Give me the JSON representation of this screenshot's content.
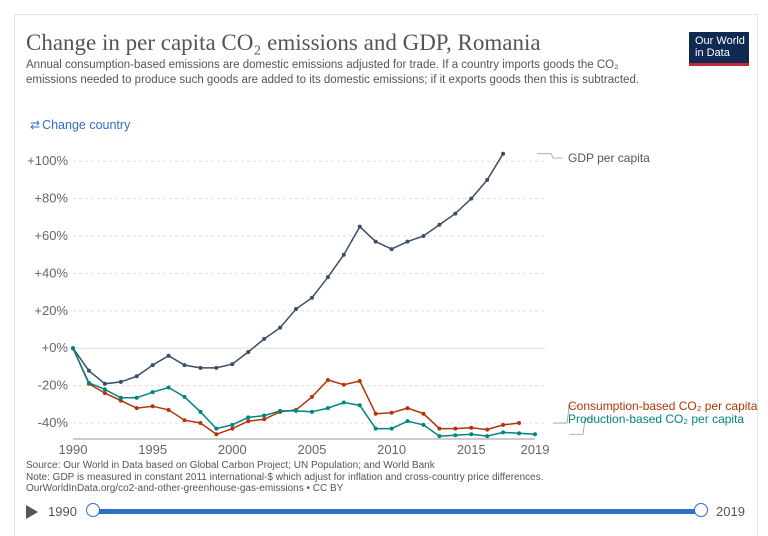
{
  "header": {
    "title": "Change in per capita CO₂ emissions and GDP, Romania",
    "subtitle": "Annual consumption-based emissions are domestic emissions adjusted for trade. If a country imports goods the CO₂ emissions needed to produce such goods are added to its domestic emissions; if it exports goods then this is subtracted.",
    "logo_line1": "Our World",
    "logo_line2": "in Data",
    "change_country": "Change country"
  },
  "colors": {
    "gdp": "#3c4e66",
    "consumption": "#b13507",
    "production": "#00847e",
    "grid": "#dddddd",
    "accent": "#2d6fc8"
  },
  "chart_data": {
    "type": "line",
    "x": [
      1990,
      1991,
      1992,
      1993,
      1994,
      1995,
      1996,
      1997,
      1998,
      1999,
      2000,
      2001,
      2002,
      2003,
      2004,
      2005,
      2006,
      2007,
      2008,
      2009,
      2010,
      2011,
      2012,
      2013,
      2014,
      2015,
      2016,
      2017,
      2018,
      2019
    ],
    "series": [
      {
        "name": "GDP per capita",
        "color_key": "gdp",
        "values": [
          0,
          -12,
          -19,
          -18,
          -15,
          -9,
          -4,
          -9,
          -10.5,
          -10.5,
          -8.5,
          -2,
          5,
          11,
          21,
          27,
          38,
          50,
          65,
          57,
          53,
          57,
          60,
          66,
          72,
          80,
          90,
          104,
          null,
          null
        ]
      },
      {
        "name": "Consumption-based CO₂ per capita",
        "color_key": "consumption",
        "values": [
          0,
          -19,
          -24,
          -28,
          -32,
          -31,
          -33,
          -38.5,
          -40,
          -46,
          -43,
          -39,
          -38,
          -34,
          -33,
          -26,
          -17,
          -19.5,
          -17.5,
          -35,
          -34.5,
          -32,
          -35,
          -43,
          -43,
          -42.5,
          -43.5,
          -41,
          -40,
          null
        ]
      },
      {
        "name": "Production-based CO₂ per capita",
        "color_key": "production",
        "values": [
          0,
          -18.5,
          -22,
          -26.5,
          -26.5,
          -23.5,
          -21,
          -26,
          -34,
          -43,
          -41,
          -37,
          -36,
          -33.5,
          -33.5,
          -34,
          -32,
          -29,
          -30.5,
          -43,
          -43,
          -39,
          -41,
          -47,
          -46.5,
          -46,
          -47,
          -45,
          -45.5,
          -46
        ]
      }
    ],
    "y_ticks": [
      -40,
      -20,
      0,
      20,
      40,
      60,
      80,
      100
    ],
    "y_tick_labels": [
      "-40%",
      "-20%",
      "+0%",
      "+20%",
      "+40%",
      "+60%",
      "+80%",
      "+100%"
    ],
    "x_ticks": [
      1990,
      1995,
      2000,
      2005,
      2010,
      2015,
      2019
    ],
    "x_tick_labels": [
      "1990",
      "1995",
      "2000",
      "2005",
      "2010",
      "2015",
      "2019"
    ],
    "ylim": [
      -48,
      106
    ],
    "xlim": [
      1990,
      2019
    ],
    "legend_labels": [
      "GDP per capita",
      "Consumption-based CO₂ per capita",
      "Production-based CO₂ per capita"
    ]
  },
  "footer": {
    "source": "Source: Our World in Data based on Global Carbon Project; UN Population; and World Bank",
    "note": "Note: GDP is measured in constant 2011 international-$ which adjust for inflation and cross-country price differences.",
    "url": "OurWorldInData.org/co2-and-other-greenhouse-gas-emissions • CC BY"
  },
  "timeline": {
    "start_label": "1990",
    "end_label": "2019",
    "start_year": 1990,
    "end_year": 2019
  }
}
